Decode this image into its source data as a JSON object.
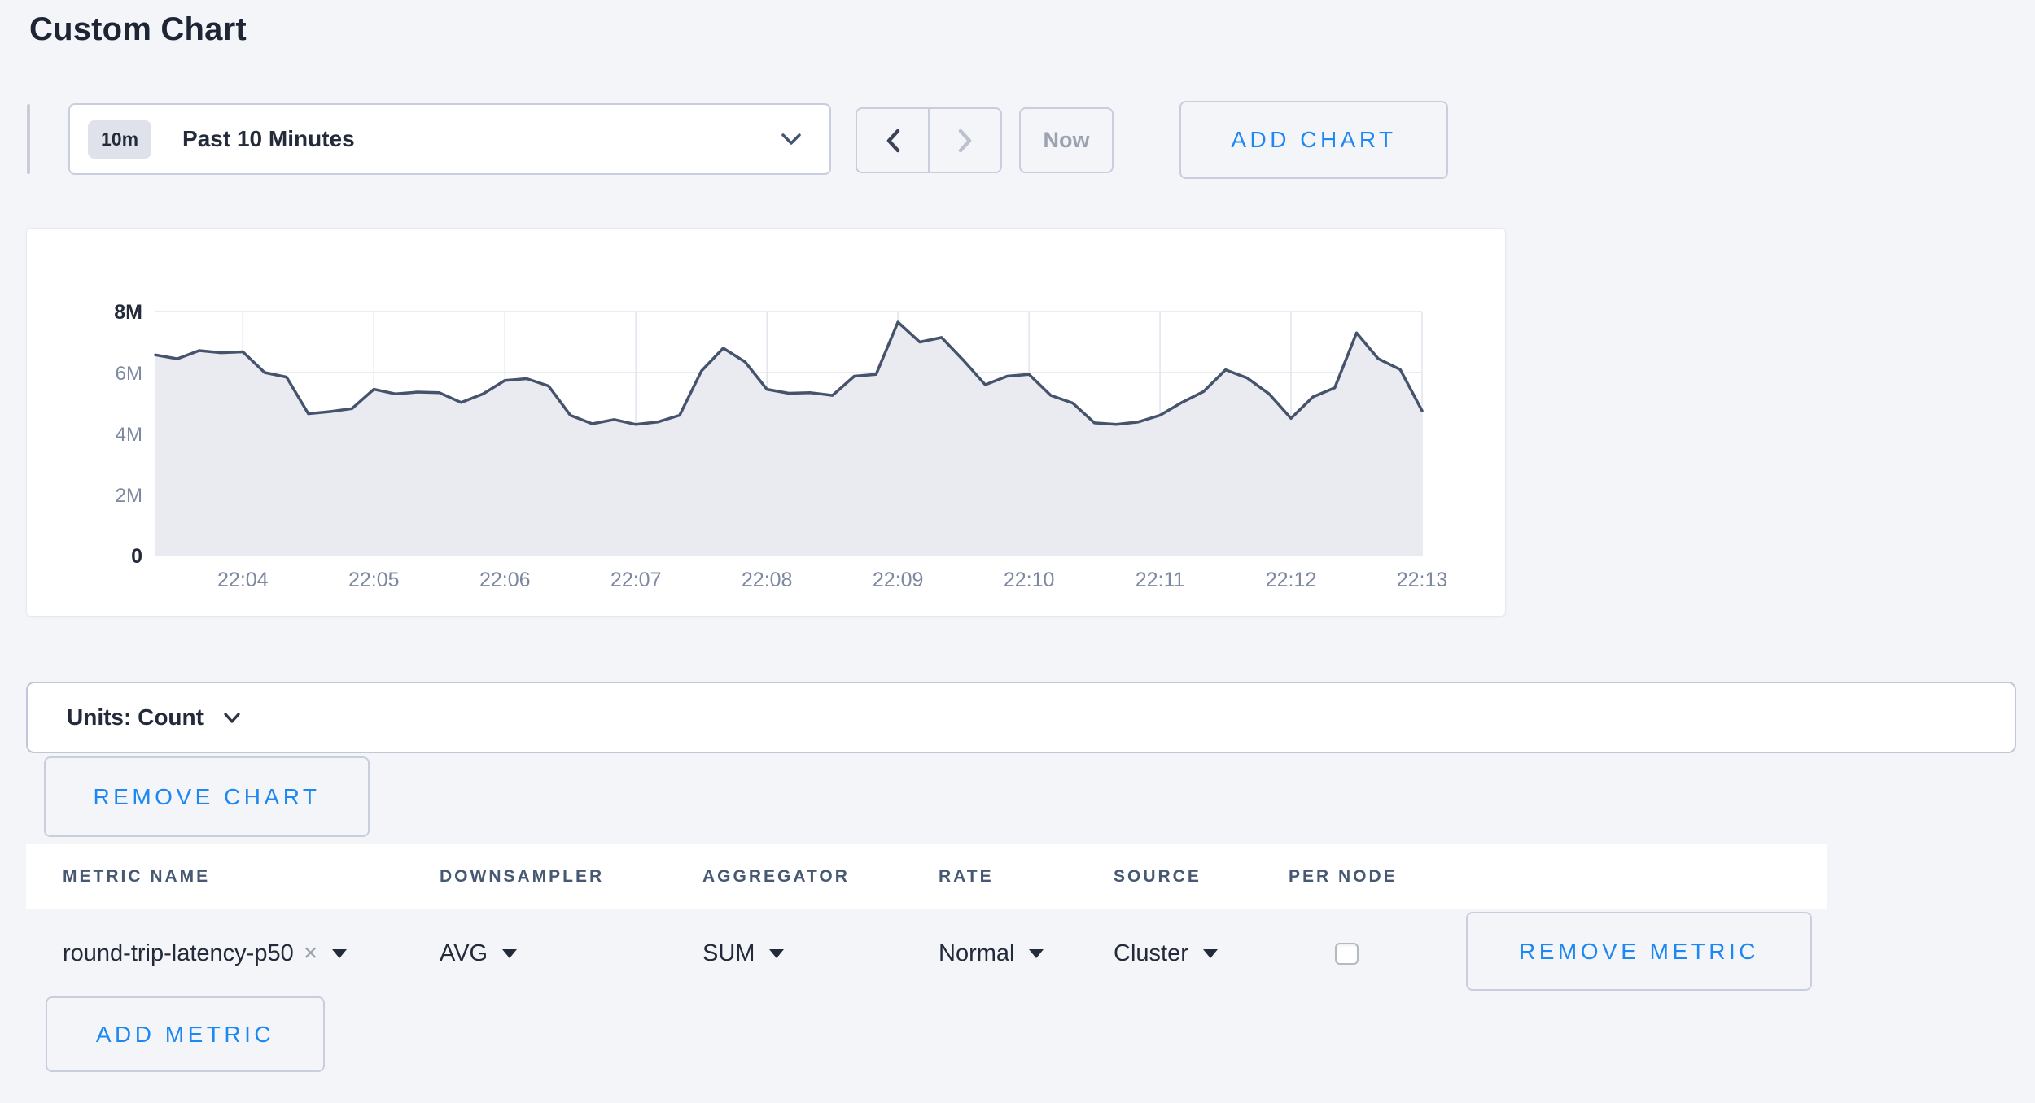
{
  "page": {
    "title": "Custom Chart"
  },
  "toolbar": {
    "time_range": {
      "badge": "10m",
      "label": "Past 10 Minutes"
    },
    "now_label": "Now",
    "add_chart_label": "ADD CHART"
  },
  "units_bar": {
    "label": "Units: Count"
  },
  "remove_chart_label": "REMOVE CHART",
  "icons": {
    "metric_clear_glyph": "×"
  },
  "metrics_table": {
    "columns": [
      "METRIC NAME",
      "DOWNSAMPLER",
      "AGGREGATOR",
      "RATE",
      "SOURCE",
      "PER NODE"
    ],
    "rows": [
      {
        "metric_name": "round-trip-latency-p50",
        "downsampler": "AVG",
        "aggregator": "SUM",
        "rate": "Normal",
        "source": "Cluster",
        "per_node_checked": false,
        "remove_label": "REMOVE METRIC"
      }
    ],
    "add_metric_label": "ADD METRIC"
  },
  "chart_data": {
    "type": "area",
    "series_name": "round-trip-latency-p50",
    "grid": true,
    "ylim_millions": [
      0,
      8
    ],
    "y_ticks": [
      {
        "value": 0,
        "label": "0",
        "emph": true
      },
      {
        "value": 2,
        "label": "2M",
        "emph": false
      },
      {
        "value": 4,
        "label": "4M",
        "emph": false
      },
      {
        "value": 6,
        "label": "6M",
        "emph": false
      },
      {
        "value": 8,
        "label": "8M",
        "emph": true
      }
    ],
    "x_tick_labels": [
      "22:04",
      "22:05",
      "22:06",
      "22:07",
      "22:08",
      "22:09",
      "22:10",
      "22:11",
      "22:12",
      "22:13"
    ],
    "first_tick_offset_s": 40,
    "tick_interval_s": 60,
    "sample_interval_s": 10,
    "total_span_s": 580,
    "values_millions": [
      6.58,
      6.45,
      6.72,
      6.65,
      6.68,
      6.0,
      5.85,
      4.65,
      4.72,
      4.82,
      5.45,
      5.3,
      5.36,
      5.34,
      5.02,
      5.3,
      5.74,
      5.8,
      5.56,
      4.6,
      4.32,
      4.46,
      4.3,
      4.38,
      4.6,
      6.05,
      6.8,
      6.35,
      5.45,
      5.32,
      5.34,
      5.25,
      5.88,
      5.94,
      7.65,
      7.0,
      7.15,
      6.4,
      5.6,
      5.88,
      5.94,
      5.25,
      5.0,
      4.35,
      4.3,
      4.38,
      4.6,
      5.02,
      5.38,
      6.09,
      5.82,
      5.3,
      4.5,
      5.2,
      5.5,
      7.3,
      6.45,
      6.1,
      4.75
    ],
    "colors": {
      "line": "#46536d",
      "fill": "#e9ebf1",
      "grid": "#e2e6ee",
      "tick_label": "#7d89a0",
      "tick_label_emph": "#232b3b"
    }
  }
}
